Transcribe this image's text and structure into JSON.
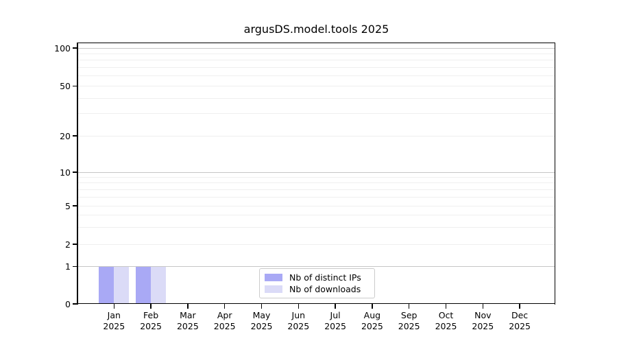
{
  "title": "argusDS.model.tools 2025",
  "colors": {
    "background": "#ffffff",
    "spine": "#000000",
    "major_grid": "#c6c6c6",
    "minor_grid": "#efefef",
    "legend_border": "#cbcbcb",
    "text": "#000000",
    "distinct_ips_bar": "#a9a9f5",
    "downloads_bar": "#dbdbf7"
  },
  "legend": {
    "items": [
      {
        "label": "Nb of distinct IPs"
      },
      {
        "label": "Nb of downloads"
      }
    ]
  },
  "chart_data": {
    "type": "bar",
    "title": "argusDS.model.tools 2025",
    "x_months": [
      "Jan",
      "Feb",
      "Mar",
      "Apr",
      "May",
      "Jun",
      "Jul",
      "Aug",
      "Sep",
      "Oct",
      "Nov",
      "Dec"
    ],
    "x_year": "2025",
    "series": [
      {
        "name": "Nb of distinct IPs",
        "color": "#a9a9f5",
        "values": [
          1,
          1,
          0,
          0,
          0,
          0,
          0,
          0,
          0,
          0,
          0,
          0
        ]
      },
      {
        "name": "Nb of downloads",
        "color": "#dbdbf7",
        "values": [
          1,
          1,
          0,
          0,
          0,
          0,
          0,
          0,
          0,
          0,
          0,
          0
        ]
      }
    ],
    "xlabel": "",
    "ylabel": "",
    "yscale": "log-like with 0 baseline",
    "ylim": [
      0,
      115
    ],
    "yticks": [
      100,
      50,
      20,
      10,
      5,
      2,
      1,
      0
    ],
    "major_gridline_values": [
      100,
      10,
      1
    ],
    "minor_gridline_values": [
      90,
      80,
      70,
      60,
      40,
      30,
      9,
      8,
      7,
      6,
      4,
      3
    ],
    "grid": "horizontal on",
    "legend_position": "lower center"
  }
}
